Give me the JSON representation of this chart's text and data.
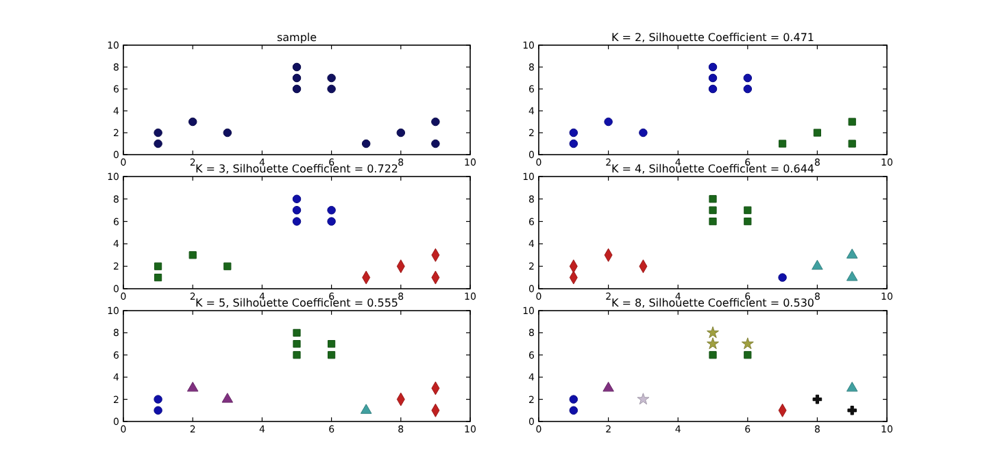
{
  "chart_data": [
    {
      "type": "scatter",
      "title": "sample",
      "xlim": [
        0,
        10
      ],
      "ylim": [
        0,
        10
      ],
      "xticks": [
        0,
        2,
        4,
        6,
        8,
        10
      ],
      "yticks": [
        0,
        2,
        4,
        6,
        8,
        10
      ],
      "marker": "circle",
      "series": [
        {
          "color": "#10105e",
          "x": [
            1,
            1,
            2,
            3,
            5,
            5,
            5,
            6,
            6,
            7,
            8,
            9,
            9
          ],
          "values": [
            1,
            2,
            3,
            2,
            6,
            7,
            8,
            6,
            7,
            1,
            2,
            1,
            3
          ]
        }
      ]
    },
    {
      "type": "scatter",
      "title": "K = 2, Silhouette Coefficient = 0.471",
      "xlim": [
        0,
        10
      ],
      "ylim": [
        0,
        10
      ],
      "xticks": [
        0,
        2,
        4,
        6,
        8,
        10
      ],
      "yticks": [
        0,
        2,
        4,
        6,
        8,
        10
      ],
      "series": [
        {
          "color": "#1010a8",
          "marker": "circle",
          "x": [
            1,
            1,
            2,
            3,
            5,
            5,
            5,
            6,
            6
          ],
          "values": [
            1,
            2,
            3,
            2,
            6,
            7,
            8,
            6,
            7
          ]
        },
        {
          "color": "#1a661a",
          "marker": "square",
          "x": [
            7,
            8,
            9,
            9
          ],
          "values": [
            1,
            2,
            1,
            3
          ]
        }
      ]
    },
    {
      "type": "scatter",
      "title": "K = 3, Silhouette Coefficient = 0.722",
      "xlim": [
        0,
        10
      ],
      "ylim": [
        0,
        10
      ],
      "xticks": [
        0,
        2,
        4,
        6,
        8,
        10
      ],
      "yticks": [
        0,
        2,
        4,
        6,
        8,
        10
      ],
      "series": [
        {
          "color": "#1a661a",
          "marker": "square",
          "x": [
            1,
            1,
            2,
            3
          ],
          "values": [
            1,
            2,
            3,
            2
          ]
        },
        {
          "color": "#1010a8",
          "marker": "circle",
          "x": [
            5,
            5,
            5,
            6,
            6
          ],
          "values": [
            6,
            7,
            8,
            6,
            7
          ]
        },
        {
          "color": "#c02020",
          "marker": "diamond",
          "x": [
            7,
            8,
            9,
            9
          ],
          "values": [
            1,
            2,
            1,
            3
          ]
        }
      ]
    },
    {
      "type": "scatter",
      "title": "K = 4, Silhouette Coefficient = 0.644",
      "xlim": [
        0,
        10
      ],
      "ylim": [
        0,
        10
      ],
      "xticks": [
        0,
        2,
        4,
        6,
        8,
        10
      ],
      "yticks": [
        0,
        2,
        4,
        6,
        8,
        10
      ],
      "series": [
        {
          "color": "#c02020",
          "marker": "diamond",
          "x": [
            1,
            1,
            2,
            3
          ],
          "values": [
            1,
            2,
            3,
            2
          ]
        },
        {
          "color": "#1a661a",
          "marker": "square",
          "x": [
            5,
            5,
            5,
            6,
            6
          ],
          "values": [
            6,
            7,
            8,
            6,
            7
          ]
        },
        {
          "color": "#1010a8",
          "marker": "circle",
          "x": [
            7
          ],
          "values": [
            1
          ]
        },
        {
          "color": "#40a0a0",
          "marker": "triangle",
          "x": [
            8,
            9,
            9
          ],
          "values": [
            2,
            1,
            3
          ]
        }
      ]
    },
    {
      "type": "scatter",
      "title": "K = 5, Silhouette Coefficient = 0.555",
      "xlim": [
        0,
        10
      ],
      "ylim": [
        0,
        10
      ],
      "xticks": [
        0,
        2,
        4,
        6,
        8,
        10
      ],
      "yticks": [
        0,
        2,
        4,
        6,
        8,
        10
      ],
      "series": [
        {
          "color": "#1010a8",
          "marker": "circle",
          "x": [
            1,
            1
          ],
          "values": [
            1,
            2
          ]
        },
        {
          "color": "#803080",
          "marker": "triangle",
          "x": [
            2,
            3
          ],
          "values": [
            3,
            2
          ]
        },
        {
          "color": "#1a661a",
          "marker": "square",
          "x": [
            5,
            5,
            5,
            6,
            6
          ],
          "values": [
            6,
            7,
            8,
            6,
            7
          ]
        },
        {
          "color": "#40a0a0",
          "marker": "triangle",
          "x": [
            7
          ],
          "values": [
            1
          ]
        },
        {
          "color": "#c02020",
          "marker": "diamond",
          "x": [
            8,
            9,
            9
          ],
          "values": [
            2,
            1,
            3
          ]
        }
      ]
    },
    {
      "type": "scatter",
      "title": "K = 8, Silhouette Coefficient = 0.530",
      "xlim": [
        0,
        10
      ],
      "ylim": [
        0,
        10
      ],
      "xticks": [
        0,
        2,
        4,
        6,
        8,
        10
      ],
      "yticks": [
        0,
        2,
        4,
        6,
        8,
        10
      ],
      "series": [
        {
          "color": "#1010a8",
          "marker": "circle",
          "x": [
            1,
            1
          ],
          "values": [
            1,
            2
          ]
        },
        {
          "color": "#803080",
          "marker": "triangle",
          "x": [
            2
          ],
          "values": [
            3
          ]
        },
        {
          "color": "#c8bcd0",
          "marker": "star",
          "x": [
            3
          ],
          "values": [
            2
          ]
        },
        {
          "color": "#a0a040",
          "marker": "star",
          "x": [
            5,
            5,
            6
          ],
          "values": [
            7,
            8,
            7
          ]
        },
        {
          "color": "#1a661a",
          "marker": "square",
          "x": [
            5,
            6
          ],
          "values": [
            6,
            6
          ]
        },
        {
          "color": "#c02020",
          "marker": "diamond",
          "x": [
            7
          ],
          "values": [
            1
          ]
        },
        {
          "color": "#101010",
          "marker": "cross",
          "x": [
            8,
            9
          ],
          "values": [
            2,
            1
          ]
        },
        {
          "color": "#40a0a0",
          "marker": "triangle",
          "x": [
            9
          ],
          "values": [
            3
          ]
        }
      ]
    }
  ]
}
